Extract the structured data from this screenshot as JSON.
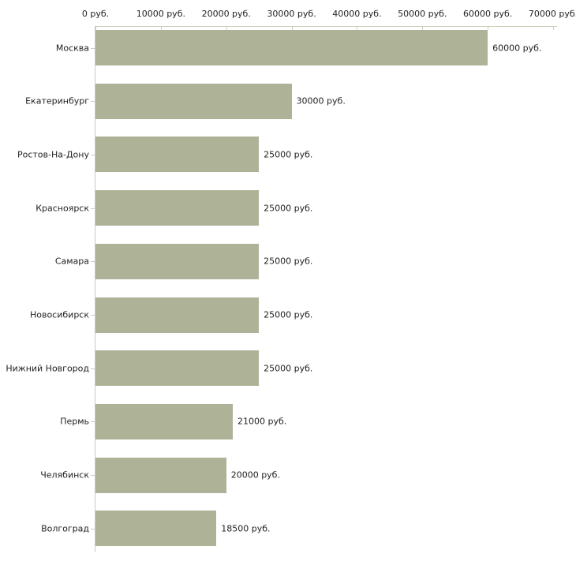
{
  "chart_data": {
    "type": "bar",
    "orientation": "horizontal",
    "title": "",
    "xlabel": "",
    "ylabel": "",
    "unit": "руб.",
    "categories": [
      "Москва",
      "Екатеринбург",
      "Ростов-На-Дону",
      "Красноярск",
      "Самара",
      "Новосибирск",
      "Нижний Новгород",
      "Пермь",
      "Челябинск",
      "Волгоград"
    ],
    "values": [
      60000,
      30000,
      25000,
      25000,
      25000,
      25000,
      25000,
      21000,
      20000,
      18500
    ],
    "value_labels": [
      "60000 руб.",
      "30000 руб.",
      "25000 руб.",
      "25000 руб.",
      "25000 руб.",
      "25000 руб.",
      "25000 руб.",
      "21000 руб.",
      "20000 руб.",
      "18500 руб."
    ],
    "x_ticks": [
      0,
      10000,
      20000,
      30000,
      40000,
      50000,
      60000,
      70000
    ],
    "x_tick_labels": [
      "0 руб.",
      "10000 руб.",
      "20000 руб.",
      "30000 руб.",
      "40000 руб.",
      "50000 руб.",
      "60000 руб.",
      "70000 руб."
    ],
    "xlim": [
      0,
      70000
    ],
    "grid": false,
    "legend": false,
    "axis_position": "top",
    "colors": {
      "bar": "#aeb398",
      "axis": "#cbceb8",
      "y_axis": "#c9c9c9",
      "text": "#222222",
      "background": "#ffffff"
    }
  }
}
